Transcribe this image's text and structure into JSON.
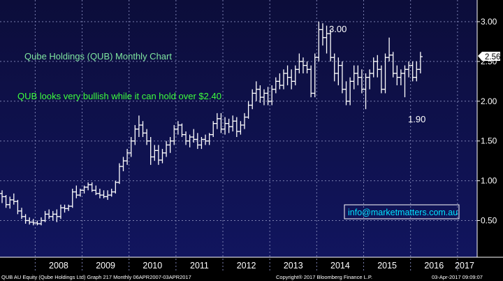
{
  "colors": {
    "plot_bg": "#0d0f4a",
    "axis_bg": "#ffffff",
    "bar": "#ffffff",
    "grid": "#7a7fb0",
    "title_text": "#7fe6a0",
    "comment_text": "#3dff3d",
    "price_box": "#ffffff"
  },
  "annotations": {
    "title": "Qube Holdings (QUB) Monthly Chart",
    "comment": "QUB looks very bullish while it can hold over $2.40",
    "high_label": "3.00",
    "low_label": "1.90",
    "website": "info@marketmatters.com.au",
    "last_price": "2.56"
  },
  "footer": {
    "left": "QUB AU Equity (Qube Holdings Ltd) Graph 217  Monthly 06APR2007-03APR2017",
    "center": "Copyright® 2017 Bloomberg Finance L.P.",
    "right": "03-Apr-2017 09:09:07"
  },
  "chart_data": {
    "type": "ohlc",
    "title": "Qube Holdings (QUB) Monthly Chart",
    "frequency": "Monthly",
    "ylim": [
      0.0,
      3.1
    ],
    "y_ticks": [
      "3.00",
      "2.50",
      "2.00",
      "1.50",
      "1.00",
      "0.50"
    ],
    "y_tick_values": [
      3.0,
      2.5,
      2.0,
      1.5,
      1.0,
      0.5
    ],
    "x_labels": [
      "2008",
      "2009",
      "2010",
      "2011",
      "2012",
      "2013",
      "2014",
      "2015",
      "2016",
      "2017"
    ],
    "x_label_years": [
      2008,
      2009,
      2010,
      2011,
      2012,
      2013,
      2014,
      2015,
      2016,
      2017
    ],
    "grid": true,
    "last_price": 2.56,
    "series": [
      {
        "start": "2007-04",
        "values": [
          [
            0.84,
            0.88,
            0.72,
            0.8
          ],
          [
            0.8,
            0.82,
            0.66,
            0.7
          ],
          [
            0.7,
            0.8,
            0.65,
            0.76
          ],
          [
            0.76,
            0.84,
            0.7,
            0.74
          ],
          [
            0.74,
            0.76,
            0.58,
            0.62
          ],
          [
            0.62,
            0.66,
            0.52,
            0.55
          ],
          [
            0.55,
            0.58,
            0.46,
            0.5
          ],
          [
            0.5,
            0.54,
            0.45,
            0.48
          ],
          [
            0.48,
            0.52,
            0.44,
            0.47
          ],
          [
            0.47,
            0.5,
            0.44,
            0.46
          ],
          [
            0.46,
            0.54,
            0.44,
            0.5
          ],
          [
            0.5,
            0.62,
            0.48,
            0.58
          ],
          [
            0.58,
            0.64,
            0.52,
            0.55
          ],
          [
            0.55,
            0.62,
            0.5,
            0.58
          ],
          [
            0.58,
            0.64,
            0.48,
            0.55
          ],
          [
            0.55,
            0.7,
            0.52,
            0.66
          ],
          [
            0.66,
            0.7,
            0.6,
            0.65
          ],
          [
            0.65,
            0.7,
            0.62,
            0.68
          ],
          [
            0.68,
            0.9,
            0.66,
            0.86
          ],
          [
            0.86,
            0.94,
            0.78,
            0.82
          ],
          [
            0.82,
            0.9,
            0.8,
            0.88
          ],
          [
            0.88,
            0.94,
            0.84,
            0.92
          ],
          [
            0.92,
            0.98,
            0.88,
            0.95
          ],
          [
            0.95,
            0.98,
            0.86,
            0.88
          ],
          [
            0.88,
            0.94,
            0.82,
            0.84
          ],
          [
            0.84,
            0.9,
            0.78,
            0.82
          ],
          [
            0.82,
            0.88,
            0.78,
            0.8
          ],
          [
            0.8,
            0.88,
            0.76,
            0.82
          ],
          [
            0.82,
            0.9,
            0.8,
            0.86
          ],
          [
            0.86,
            1.0,
            0.84,
            0.98
          ],
          [
            0.98,
            1.22,
            0.96,
            1.18
          ],
          [
            1.18,
            1.3,
            1.12,
            1.25
          ],
          [
            1.25,
            1.4,
            1.2,
            1.35
          ],
          [
            1.35,
            1.55,
            1.3,
            1.5
          ],
          [
            1.5,
            1.7,
            1.45,
            1.65
          ],
          [
            1.65,
            1.82,
            1.55,
            1.7
          ],
          [
            1.7,
            1.75,
            1.55,
            1.6
          ],
          [
            1.6,
            1.65,
            1.45,
            1.5
          ],
          [
            1.5,
            1.55,
            1.2,
            1.3
          ],
          [
            1.3,
            1.45,
            1.25,
            1.38
          ],
          [
            1.38,
            1.45,
            1.2,
            1.26
          ],
          [
            1.26,
            1.4,
            1.22,
            1.35
          ],
          [
            1.35,
            1.5,
            1.3,
            1.45
          ],
          [
            1.45,
            1.55,
            1.35,
            1.5
          ],
          [
            1.5,
            1.7,
            1.45,
            1.65
          ],
          [
            1.65,
            1.75,
            1.58,
            1.7
          ],
          [
            1.7,
            1.72,
            1.55,
            1.58
          ],
          [
            1.58,
            1.62,
            1.45,
            1.5
          ],
          [
            1.5,
            1.58,
            1.42,
            1.55
          ],
          [
            1.55,
            1.65,
            1.48,
            1.52
          ],
          [
            1.52,
            1.6,
            1.4,
            1.45
          ],
          [
            1.45,
            1.55,
            1.4,
            1.52
          ],
          [
            1.52,
            1.58,
            1.45,
            1.5
          ],
          [
            1.5,
            1.6,
            1.45,
            1.58
          ],
          [
            1.58,
            1.75,
            1.55,
            1.72
          ],
          [
            1.72,
            1.85,
            1.65,
            1.78
          ],
          [
            1.78,
            1.85,
            1.6,
            1.65
          ],
          [
            1.65,
            1.8,
            1.58,
            1.72
          ],
          [
            1.72,
            1.78,
            1.6,
            1.68
          ],
          [
            1.68,
            1.82,
            1.62,
            1.75
          ],
          [
            1.75,
            1.8,
            1.55,
            1.62
          ],
          [
            1.62,
            1.75,
            1.58,
            1.7
          ],
          [
            1.7,
            1.85,
            1.65,
            1.8
          ],
          [
            1.8,
            2.0,
            1.78,
            1.95
          ],
          [
            1.95,
            2.15,
            1.9,
            2.1
          ],
          [
            2.1,
            2.25,
            2.0,
            2.15
          ],
          [
            2.15,
            2.2,
            1.98,
            2.05
          ],
          [
            2.05,
            2.15,
            1.95,
            2.1
          ],
          [
            2.1,
            2.18,
            1.95,
            2.0
          ],
          [
            2.0,
            2.2,
            1.95,
            2.15
          ],
          [
            2.15,
            2.3,
            2.1,
            2.25
          ],
          [
            2.25,
            2.35,
            2.15,
            2.2
          ],
          [
            2.2,
            2.4,
            2.15,
            2.35
          ],
          [
            2.35,
            2.45,
            2.2,
            2.3
          ],
          [
            2.3,
            2.4,
            2.15,
            2.25
          ],
          [
            2.25,
            2.45,
            2.2,
            2.4
          ],
          [
            2.4,
            2.6,
            2.35,
            2.5
          ],
          [
            2.5,
            2.55,
            2.35,
            2.45
          ],
          [
            2.45,
            2.5,
            2.35,
            2.4
          ],
          [
            2.4,
            2.45,
            2.05,
            2.1
          ],
          [
            2.1,
            2.6,
            2.05,
            2.55
          ],
          [
            2.55,
            3.0,
            2.5,
            2.9
          ],
          [
            2.9,
            2.98,
            2.7,
            2.8
          ],
          [
            2.8,
            2.95,
            2.6,
            2.85
          ],
          [
            2.85,
            2.9,
            2.5,
            2.55
          ],
          [
            2.55,
            2.6,
            2.25,
            2.35
          ],
          [
            2.35,
            2.55,
            2.2,
            2.45
          ],
          [
            2.45,
            2.5,
            2.1,
            2.15
          ],
          [
            2.15,
            2.25,
            1.95,
            2.0
          ],
          [
            2.0,
            2.3,
            1.95,
            2.25
          ],
          [
            2.25,
            2.45,
            2.15,
            2.35
          ],
          [
            2.35,
            2.45,
            2.2,
            2.3
          ],
          [
            2.3,
            2.4,
            2.1,
            2.15
          ],
          [
            2.15,
            2.35,
            1.9,
            2.3
          ],
          [
            2.3,
            2.4,
            2.15,
            2.35
          ],
          [
            2.35,
            2.55,
            2.3,
            2.5
          ],
          [
            2.5,
            2.58,
            2.3,
            2.4
          ],
          [
            2.4,
            2.45,
            2.1,
            2.15
          ],
          [
            2.15,
            2.6,
            2.1,
            2.55
          ],
          [
            2.55,
            2.8,
            2.5,
            2.58
          ],
          [
            2.58,
            2.62,
            2.3,
            2.35
          ],
          [
            2.35,
            2.45,
            2.2,
            2.3
          ],
          [
            2.3,
            2.4,
            2.2,
            2.35
          ],
          [
            2.35,
            2.45,
            2.05,
            2.4
          ],
          [
            2.4,
            2.5,
            2.3,
            2.45
          ],
          [
            2.45,
            2.5,
            2.25,
            2.3
          ],
          [
            2.3,
            2.5,
            2.25,
            2.4
          ],
          [
            2.4,
            2.62,
            2.35,
            2.56
          ]
        ]
      }
    ]
  }
}
